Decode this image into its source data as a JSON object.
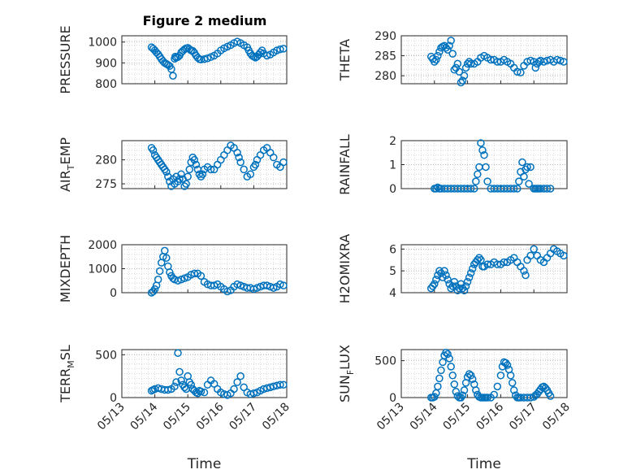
{
  "figure": {
    "title": "Figure 2 medium",
    "marker_color": "#0072bd",
    "axis_color": "#262626",
    "grid": "dotted"
  },
  "chart_data": [
    {
      "type": "scatter",
      "ylabel": "PRESSURE",
      "ylim": [
        800,
        1030
      ],
      "yticks": [
        800,
        900,
        1000
      ],
      "xticks": [
        "05/13",
        "05/14",
        "05/15",
        "05/16",
        "05/17",
        "05/18"
      ],
      "xlim": [
        0,
        5
      ],
      "x": [
        0.9,
        0.95,
        1.0,
        1.05,
        1.1,
        1.15,
        1.2,
        1.25,
        1.3,
        1.35,
        1.4,
        1.45,
        1.5,
        1.55,
        1.6,
        1.62,
        1.65,
        1.7,
        1.75,
        1.8,
        1.85,
        1.9,
        1.95,
        2.0,
        2.05,
        2.1,
        2.15,
        2.2,
        2.25,
        2.3,
        2.35,
        2.4,
        2.5,
        2.6,
        2.7,
        2.8,
        2.9,
        3.0,
        3.1,
        3.2,
        3.3,
        3.4,
        3.5,
        3.6,
        3.7,
        3.8,
        3.85,
        3.9,
        3.95,
        4.0,
        4.05,
        4.1,
        4.15,
        4.2,
        4.25,
        4.3,
        4.4,
        4.5,
        4.6,
        4.7,
        4.8,
        4.9
      ],
      "y": [
        975,
        968,
        960,
        950,
        942,
        930,
        918,
        908,
        900,
        895,
        890,
        885,
        870,
        838,
        920,
        930,
        925,
        928,
        935,
        950,
        958,
        965,
        970,
        972,
        966,
        960,
        958,
        948,
        935,
        925,
        918,
        916,
        918,
        922,
        928,
        935,
        945,
        960,
        970,
        978,
        985,
        995,
        1002,
        995,
        985,
        975,
        960,
        945,
        935,
        930,
        925,
        930,
        940,
        950,
        960,
        945,
        935,
        940,
        950,
        960,
        965,
        968
      ]
    },
    {
      "type": "scatter",
      "ylabel": "THETA",
      "ylim": [
        278,
        290
      ],
      "yticks": [
        280,
        285,
        290
      ],
      "xticks": [
        "05/13",
        "05/14",
        "05/15",
        "05/16",
        "05/17",
        "05/18"
      ],
      "xlim": [
        0,
        5
      ],
      "x": [
        0.9,
        0.95,
        1.0,
        1.05,
        1.1,
        1.15,
        1.2,
        1.25,
        1.3,
        1.35,
        1.4,
        1.45,
        1.5,
        1.55,
        1.6,
        1.65,
        1.7,
        1.75,
        1.8,
        1.85,
        1.9,
        1.95,
        2.0,
        2.05,
        2.1,
        2.2,
        2.3,
        2.4,
        2.5,
        2.6,
        2.7,
        2.8,
        2.9,
        3.0,
        3.1,
        3.2,
        3.3,
        3.4,
        3.5,
        3.6,
        3.7,
        3.8,
        3.9,
        4.0,
        4.05,
        4.1,
        4.15,
        4.2,
        4.3,
        4.4,
        4.5,
        4.6,
        4.7,
        4.8,
        4.9
      ],
      "y": [
        284.8,
        284.2,
        283.5,
        284.0,
        285.0,
        286.0,
        287.0,
        287.3,
        287.5,
        287.0,
        286.5,
        287.5,
        288.8,
        285.5,
        281.5,
        282.0,
        283.0,
        281.0,
        278.3,
        278.8,
        280.0,
        282.0,
        283.0,
        283.5,
        283.0,
        283.0,
        283.5,
        284.5,
        285.0,
        284.5,
        284.0,
        284.0,
        283.5,
        283.5,
        284.0,
        283.5,
        283.0,
        282.0,
        281.0,
        280.8,
        282.5,
        283.5,
        283.8,
        283.5,
        282.0,
        283.0,
        283.5,
        283.8,
        283.5,
        283.8,
        284.0,
        283.5,
        284.0,
        283.8,
        283.5
      ]
    },
    {
      "type": "scatter",
      "ylabel": "AIR_TEMP",
      "ylim": [
        274,
        284
      ],
      "yticks": [
        275,
        280
      ],
      "xticks": [
        "05/13",
        "05/14",
        "05/15",
        "05/16",
        "05/17",
        "05/18"
      ],
      "xlim": [
        0,
        5
      ],
      "x": [
        0.9,
        0.95,
        1.0,
        1.05,
        1.1,
        1.15,
        1.2,
        1.25,
        1.3,
        1.35,
        1.4,
        1.45,
        1.5,
        1.55,
        1.6,
        1.65,
        1.7,
        1.75,
        1.8,
        1.85,
        1.9,
        1.95,
        2.0,
        2.05,
        2.1,
        2.15,
        2.2,
        2.25,
        2.3,
        2.35,
        2.4,
        2.45,
        2.5,
        2.6,
        2.7,
        2.8,
        2.9,
        3.0,
        3.1,
        3.2,
        3.3,
        3.4,
        3.5,
        3.55,
        3.6,
        3.7,
        3.8,
        3.9,
        4.0,
        4.05,
        4.1,
        4.2,
        4.3,
        4.4,
        4.5,
        4.6,
        4.7,
        4.8,
        4.9
      ],
      "y": [
        282.5,
        282.0,
        281.0,
        280.5,
        280.0,
        279.5,
        279.0,
        278.5,
        278.0,
        277.5,
        276.5,
        275.5,
        274.5,
        276.0,
        275.0,
        276.5,
        275.5,
        276.0,
        277.0,
        276.0,
        274.5,
        275.0,
        276.5,
        278.0,
        279.5,
        280.5,
        280.0,
        279.0,
        278.0,
        277.0,
        276.5,
        277.0,
        278.0,
        278.5,
        278.0,
        278.0,
        279.0,
        280.0,
        281.0,
        282.0,
        283.0,
        282.5,
        281.5,
        280.5,
        279.5,
        278.0,
        276.5,
        277.0,
        278.5,
        279.0,
        280.0,
        281.0,
        282.0,
        282.5,
        281.5,
        280.5,
        279.0,
        278.5,
        279.5
      ]
    },
    {
      "type": "scatter",
      "ylabel": "RAINFALL",
      "ylim": [
        0,
        2
      ],
      "yticks": [
        0,
        1,
        2
      ],
      "xticks": [
        "05/13",
        "05/14",
        "05/15",
        "05/16",
        "05/17",
        "05/18"
      ],
      "xlim": [
        0,
        5
      ],
      "x": [
        1.0,
        1.05,
        1.1,
        1.15,
        1.2,
        1.3,
        1.4,
        1.5,
        1.6,
        1.7,
        1.8,
        1.9,
        2.0,
        2.1,
        2.2,
        2.25,
        2.3,
        2.35,
        2.4,
        2.45,
        2.5,
        2.55,
        2.6,
        2.7,
        2.8,
        2.9,
        3.0,
        3.1,
        3.2,
        3.3,
        3.4,
        3.5,
        3.55,
        3.6,
        3.65,
        3.7,
        3.75,
        3.8,
        3.85,
        3.9,
        4.0,
        4.05,
        4.1,
        4.15,
        4.2,
        4.3,
        4.4,
        4.5
      ],
      "y": [
        0,
        0,
        0.05,
        0,
        0,
        0,
        0,
        0,
        0,
        0,
        0,
        0,
        0,
        0,
        0,
        0.3,
        0.6,
        0.9,
        1.9,
        1.6,
        1.4,
        0.9,
        0.3,
        0,
        0,
        0,
        0,
        0,
        0,
        0,
        0,
        0,
        0.3,
        0.7,
        1.1,
        0.5,
        0.8,
        0.9,
        0.2,
        0.9,
        0,
        0,
        0,
        0,
        0,
        0,
        0,
        0
      ]
    },
    {
      "type": "scatter",
      "ylabel": "MIXDEPTH",
      "ylim": [
        0,
        2000
      ],
      "yticks": [
        0,
        1000,
        2000
      ],
      "xticks": [
        "05/13",
        "05/14",
        "05/15",
        "05/16",
        "05/17",
        "05/18"
      ],
      "xlim": [
        0,
        5
      ],
      "x": [
        0.9,
        0.95,
        1.0,
        1.05,
        1.1,
        1.15,
        1.2,
        1.25,
        1.3,
        1.35,
        1.4,
        1.45,
        1.5,
        1.55,
        1.6,
        1.7,
        1.8,
        1.9,
        2.0,
        2.1,
        2.2,
        2.3,
        2.4,
        2.5,
        2.6,
        2.7,
        2.8,
        2.9,
        3.0,
        3.1,
        3.2,
        3.3,
        3.4,
        3.5,
        3.6,
        3.7,
        3.8,
        3.9,
        4.0,
        4.1,
        4.2,
        4.3,
        4.4,
        4.5,
        4.6,
        4.7,
        4.8,
        4.9
      ],
      "y": [
        0,
        50,
        150,
        300,
        550,
        900,
        1250,
        1500,
        1750,
        1450,
        1100,
        850,
        700,
        600,
        550,
        500,
        550,
        600,
        650,
        750,
        800,
        800,
        700,
        450,
        350,
        300,
        300,
        350,
        250,
        150,
        50,
        100,
        250,
        350,
        300,
        250,
        200,
        200,
        150,
        200,
        250,
        300,
        300,
        250,
        200,
        250,
        350,
        300
      ]
    },
    {
      "type": "scatter",
      "ylabel": "H2OMIXRA",
      "ylim": [
        4,
        6.2
      ],
      "yticks": [
        4,
        5,
        6
      ],
      "xticks": [
        "05/13",
        "05/14",
        "05/15",
        "05/16",
        "05/17",
        "05/18"
      ],
      "xlim": [
        0,
        5
      ],
      "x": [
        0.9,
        0.95,
        1.0,
        1.05,
        1.1,
        1.15,
        1.2,
        1.25,
        1.3,
        1.35,
        1.4,
        1.45,
        1.5,
        1.55,
        1.6,
        1.65,
        1.7,
        1.75,
        1.8,
        1.85,
        1.9,
        1.95,
        2.0,
        2.05,
        2.1,
        2.15,
        2.2,
        2.25,
        2.3,
        2.35,
        2.4,
        2.45,
        2.5,
        2.6,
        2.7,
        2.8,
        2.9,
        3.0,
        3.1,
        3.2,
        3.3,
        3.4,
        3.5,
        3.6,
        3.7,
        3.75,
        3.8,
        3.9,
        4.0,
        4.1,
        4.2,
        4.3,
        4.4,
        4.5,
        4.6,
        4.7,
        4.8,
        4.9
      ],
      "y": [
        4.2,
        4.3,
        4.4,
        4.6,
        4.8,
        5.0,
        4.9,
        4.7,
        5.0,
        4.8,
        4.6,
        4.4,
        4.2,
        4.3,
        4.5,
        4.3,
        4.1,
        4.2,
        4.4,
        4.2,
        4.1,
        4.3,
        4.5,
        4.7,
        4.9,
        5.1,
        5.3,
        5.4,
        5.5,
        5.6,
        5.5,
        5.2,
        5.2,
        5.3,
        5.3,
        5.4,
        5.3,
        5.3,
        5.4,
        5.4,
        5.5,
        5.6,
        5.4,
        5.2,
        5.0,
        4.8,
        5.5,
        5.7,
        6.0,
        5.7,
        5.5,
        5.4,
        5.6,
        5.8,
        6.0,
        5.9,
        5.8,
        5.7
      ]
    },
    {
      "type": "scatter",
      "ylabel": "TERR_MSL",
      "ylim": [
        0,
        560
      ],
      "yticks": [
        0,
        500
      ],
      "xticks": [
        "05/13",
        "05/14",
        "05/15",
        "05/16",
        "05/17",
        "05/18"
      ],
      "xlim": [
        0,
        5
      ],
      "x": [
        0.9,
        0.95,
        1.0,
        1.1,
        1.2,
        1.3,
        1.4,
        1.5,
        1.6,
        1.65,
        1.7,
        1.75,
        1.8,
        1.85,
        1.9,
        1.95,
        2.0,
        2.05,
        2.1,
        2.15,
        2.2,
        2.25,
        2.3,
        2.35,
        2.4,
        2.5,
        2.6,
        2.7,
        2.8,
        2.9,
        3.0,
        3.1,
        3.2,
        3.3,
        3.4,
        3.5,
        3.6,
        3.7,
        3.8,
        3.9,
        4.0,
        4.1,
        4.2,
        4.3,
        4.4,
        4.5,
        4.6,
        4.7,
        4.8,
        4.9
      ],
      "y": [
        80,
        90,
        100,
        110,
        100,
        90,
        90,
        100,
        130,
        180,
        520,
        300,
        200,
        150,
        120,
        100,
        250,
        180,
        150,
        100,
        80,
        60,
        50,
        80,
        70,
        60,
        150,
        200,
        160,
        100,
        60,
        40,
        30,
        50,
        100,
        180,
        250,
        120,
        60,
        40,
        50,
        60,
        80,
        100,
        110,
        120,
        130,
        140,
        150,
        150
      ]
    },
    {
      "type": "scatter",
      "ylabel": "SUN_FLUX",
      "ylim": [
        0,
        650
      ],
      "yticks": [
        0,
        500
      ],
      "xticks": [
        "05/13",
        "05/14",
        "05/15",
        "05/16",
        "05/17",
        "05/18"
      ],
      "xlim": [
        0,
        5
      ],
      "x": [
        0.9,
        0.95,
        1.0,
        1.05,
        1.1,
        1.15,
        1.2,
        1.25,
        1.3,
        1.35,
        1.4,
        1.45,
        1.5,
        1.55,
        1.6,
        1.65,
        1.7,
        1.75,
        1.8,
        1.85,
        1.9,
        1.95,
        2.0,
        2.05,
        2.1,
        2.15,
        2.2,
        2.25,
        2.3,
        2.35,
        2.4,
        2.45,
        2.5,
        2.55,
        2.6,
        2.7,
        2.8,
        2.9,
        3.0,
        3.05,
        3.1,
        3.15,
        3.2,
        3.25,
        3.3,
        3.35,
        3.4,
        3.45,
        3.5,
        3.55,
        3.6,
        3.7,
        3.8,
        3.9,
        4.0,
        4.05,
        4.1,
        4.15,
        4.2,
        4.25,
        4.3,
        4.35,
        4.4,
        4.45,
        4.5
      ],
      "y": [
        0,
        0,
        10,
        60,
        150,
        260,
        370,
        480,
        570,
        610,
        590,
        530,
        420,
        300,
        180,
        80,
        20,
        0,
        0,
        30,
        100,
        200,
        280,
        320,
        300,
        250,
        180,
        100,
        40,
        10,
        0,
        0,
        0,
        0,
        0,
        0,
        40,
        150,
        300,
        420,
        480,
        470,
        440,
        380,
        300,
        200,
        100,
        30,
        0,
        0,
        0,
        0,
        0,
        0,
        10,
        30,
        50,
        80,
        110,
        140,
        150,
        130,
        100,
        60,
        20
      ]
    }
  ]
}
